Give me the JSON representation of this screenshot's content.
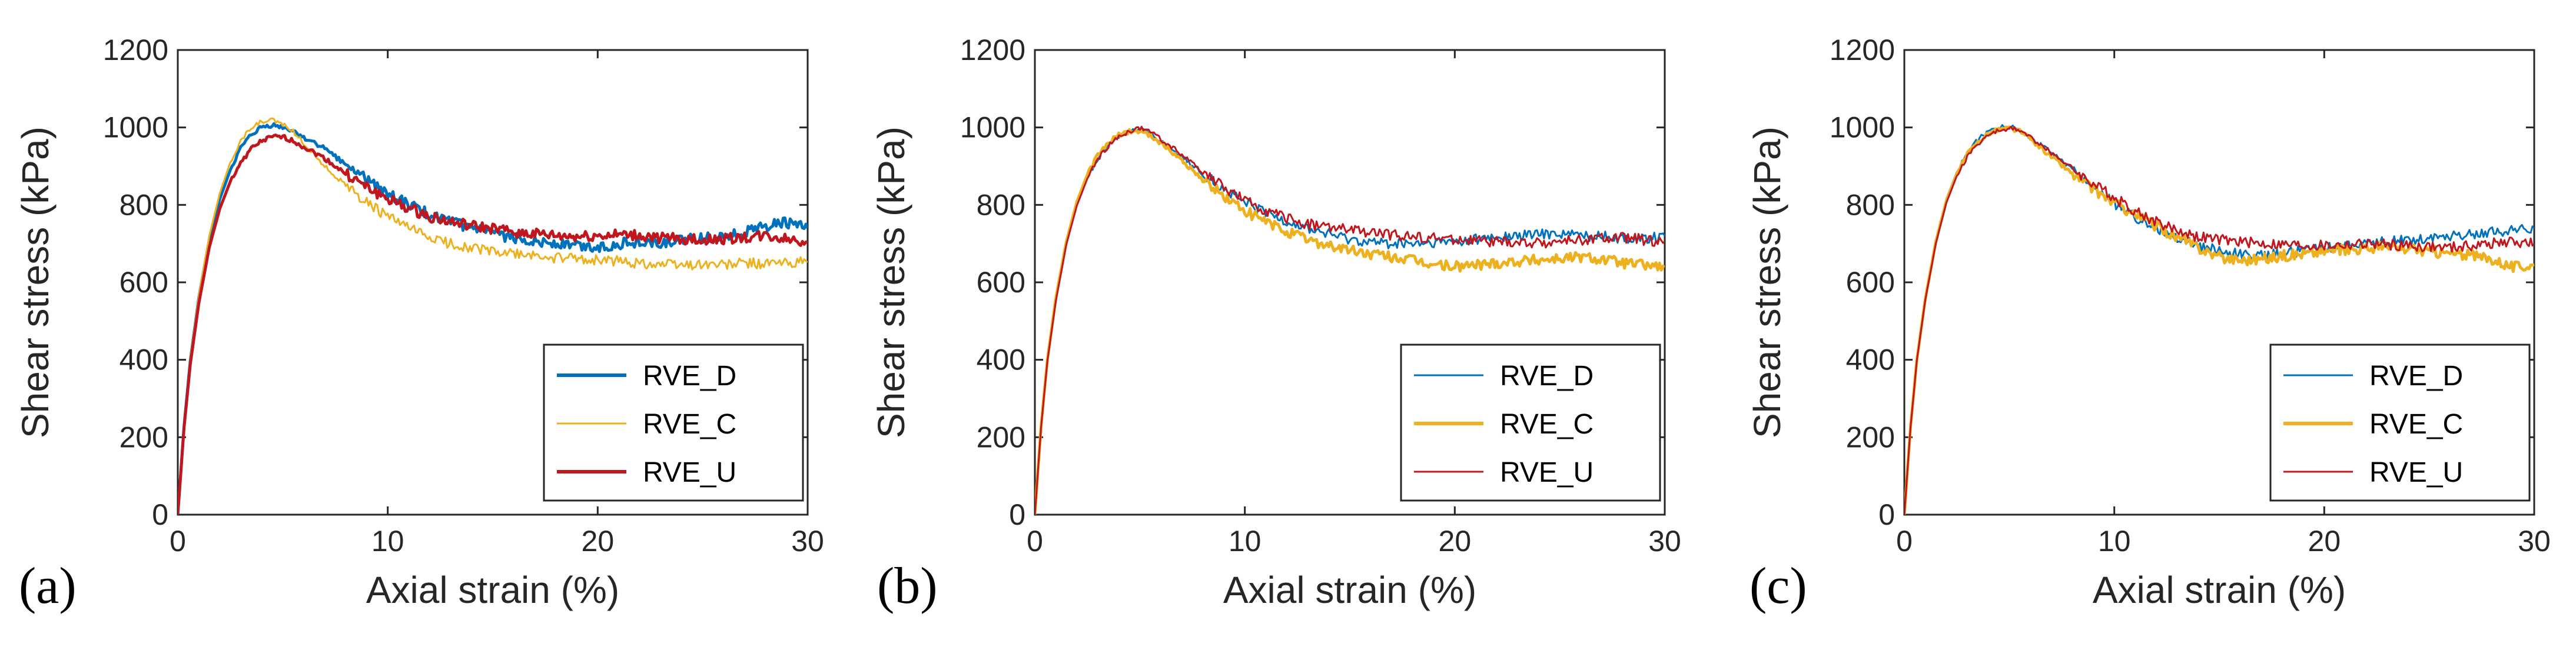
{
  "figure": {
    "panel_labels": [
      "(a)",
      "(b)",
      "(c)"
    ]
  },
  "chart_data": [
    {
      "type": "line",
      "panel": "(a)",
      "xlabel": "Axial strain (%)",
      "ylabel": "Shear stress (kPa)",
      "xlim": [
        0,
        30
      ],
      "ylim": [
        0,
        1200
      ],
      "xticks": [
        0,
        10,
        20,
        30
      ],
      "yticks": [
        0,
        200,
        400,
        600,
        800,
        1000,
        1200
      ],
      "grid": false,
      "legend_position": "bottom-right",
      "series": [
        {
          "name": "RVE_D",
          "color": "#0072BD",
          "emphasis": "thick",
          "x": [
            0,
            0.3,
            0.6,
            1,
            1.5,
            2,
            2.5,
            3,
            3.5,
            4,
            4.5,
            5,
            5.5,
            6,
            7,
            8,
            9,
            10,
            11,
            12,
            13,
            14,
            15,
            16,
            17,
            18,
            19,
            20,
            21,
            22,
            23,
            24,
            25,
            26,
            27,
            28,
            29,
            30
          ],
          "y": [
            0,
            230,
            400,
            560,
            710,
            815,
            890,
            945,
            980,
            1000,
            1005,
            1000,
            990,
            975,
            945,
            905,
            865,
            830,
            800,
            775,
            755,
            740,
            725,
            715,
            708,
            700,
            695,
            690,
            700,
            705,
            700,
            708,
            715,
            720,
            730,
            745,
            755,
            740
          ]
        },
        {
          "name": "RVE_C",
          "color": "#EDB120",
          "emphasis": "thin",
          "x": [
            0,
            0.3,
            0.6,
            1,
            1.5,
            2,
            2.5,
            3,
            3.5,
            4,
            4.5,
            5,
            5.5,
            6,
            7,
            8,
            9,
            10,
            11,
            12,
            13,
            14,
            15,
            16,
            17,
            18,
            19,
            20,
            21,
            22,
            23,
            24,
            25,
            26,
            27,
            28,
            29,
            30
          ],
          "y": [
            0,
            235,
            405,
            565,
            720,
            830,
            910,
            965,
            1000,
            1015,
            1018,
            1010,
            990,
            960,
            900,
            850,
            805,
            770,
            740,
            715,
            700,
            690,
            680,
            672,
            668,
            662,
            660,
            658,
            655,
            650,
            648,
            645,
            648,
            645,
            650,
            648,
            650,
            652
          ]
        },
        {
          "name": "RVE_U",
          "color": "#C0171F",
          "emphasis": "thick",
          "x": [
            0,
            0.3,
            0.6,
            1,
            1.5,
            2,
            2.5,
            3,
            3.5,
            4,
            4.5,
            5,
            5.5,
            6,
            7,
            8,
            9,
            10,
            11,
            12,
            13,
            14,
            15,
            16,
            17,
            18,
            19,
            20,
            21,
            22,
            23,
            24,
            25,
            26,
            27,
            28,
            29,
            30
          ],
          "y": [
            0,
            225,
            390,
            545,
            690,
            790,
            860,
            910,
            945,
            965,
            975,
            975,
            965,
            950,
            920,
            880,
            845,
            815,
            790,
            770,
            755,
            745,
            738,
            730,
            725,
            720,
            718,
            720,
            722,
            720,
            715,
            712,
            708,
            712,
            715,
            720,
            712,
            705
          ]
        }
      ]
    },
    {
      "type": "line",
      "panel": "(b)",
      "xlabel": "Axial strain (%)",
      "ylabel": "Shear stress (kPa)",
      "xlim": [
        0,
        30
      ],
      "ylim": [
        0,
        1200
      ],
      "xticks": [
        0,
        10,
        20,
        30
      ],
      "yticks": [
        0,
        200,
        400,
        600,
        800,
        1000,
        1200
      ],
      "grid": false,
      "legend_position": "bottom-right",
      "series": [
        {
          "name": "RVE_D",
          "color": "#0072BD",
          "emphasis": "thin",
          "x": [
            0,
            0.3,
            0.6,
            1,
            1.5,
            2,
            2.5,
            3,
            3.5,
            4,
            4.5,
            5,
            5.5,
            6,
            7,
            8,
            9,
            10,
            11,
            12,
            13,
            14,
            15,
            16,
            17,
            18,
            19,
            20,
            21,
            22,
            23,
            24,
            25,
            26,
            27,
            28,
            29,
            30
          ],
          "y": [
            0,
            230,
            400,
            555,
            700,
            800,
            870,
            920,
            955,
            978,
            992,
            995,
            985,
            965,
            925,
            880,
            840,
            805,
            780,
            760,
            740,
            725,
            712,
            705,
            700,
            698,
            700,
            705,
            710,
            715,
            720,
            725,
            728,
            722,
            718,
            715,
            712,
            720
          ]
        },
        {
          "name": "RVE_C",
          "color": "#EDB120",
          "emphasis": "thick",
          "x": [
            0,
            0.3,
            0.6,
            1,
            1.5,
            2,
            2.5,
            3,
            3.5,
            4,
            4.5,
            5,
            5.5,
            6,
            7,
            8,
            9,
            10,
            11,
            12,
            13,
            14,
            15,
            16,
            17,
            18,
            19,
            20,
            21,
            22,
            23,
            24,
            25,
            26,
            27,
            28,
            29,
            30
          ],
          "y": [
            0,
            232,
            402,
            560,
            705,
            808,
            878,
            928,
            960,
            980,
            990,
            990,
            980,
            960,
            915,
            865,
            820,
            785,
            755,
            730,
            710,
            695,
            682,
            672,
            665,
            655,
            645,
            640,
            645,
            650,
            655,
            658,
            662,
            665,
            660,
            650,
            645,
            640
          ]
        },
        {
          "name": "RVE_U",
          "color": "#C0171F",
          "emphasis": "thin",
          "x": [
            0,
            0.3,
            0.6,
            1,
            1.5,
            2,
            2.5,
            3,
            3.5,
            4,
            4.5,
            5,
            5.5,
            6,
            7,
            8,
            9,
            10,
            11,
            12,
            13,
            14,
            15,
            16,
            17,
            18,
            19,
            20,
            21,
            22,
            23,
            24,
            25,
            26,
            27,
            28,
            29,
            30
          ],
          "y": [
            0,
            228,
            398,
            552,
            698,
            798,
            868,
            918,
            952,
            975,
            990,
            998,
            990,
            970,
            930,
            885,
            845,
            810,
            785,
            765,
            750,
            742,
            735,
            728,
            722,
            718,
            715,
            712,
            708,
            705,
            702,
            700,
            705,
            710,
            712,
            715,
            710,
            705
          ]
        }
      ]
    },
    {
      "type": "line",
      "panel": "(c)",
      "xlabel": "Axial strain (%)",
      "ylabel": "Shear stress (kPa)",
      "xlim": [
        0,
        30
      ],
      "ylim": [
        0,
        1200
      ],
      "xticks": [
        0,
        10,
        20,
        30
      ],
      "yticks": [
        0,
        200,
        400,
        600,
        800,
        1000,
        1200
      ],
      "grid": false,
      "legend_position": "bottom-right",
      "series": [
        {
          "name": "RVE_D",
          "color": "#0072BD",
          "emphasis": "thin",
          "x": [
            0,
            0.3,
            0.6,
            1,
            1.5,
            2,
            2.5,
            3,
            3.5,
            4,
            4.5,
            5,
            5.5,
            6,
            7,
            8,
            9,
            10,
            11,
            12,
            13,
            14,
            15,
            16,
            17,
            18,
            19,
            20,
            21,
            22,
            23,
            24,
            25,
            26,
            27,
            28,
            29,
            30
          ],
          "y": [
            0,
            232,
            405,
            562,
            710,
            815,
            885,
            935,
            968,
            990,
            1000,
            1002,
            995,
            975,
            935,
            890,
            845,
            805,
            770,
            740,
            715,
            695,
            680,
            672,
            670,
            675,
            682,
            690,
            695,
            700,
            705,
            710,
            715,
            720,
            725,
            730,
            735,
            740
          ]
        },
        {
          "name": "RVE_C",
          "color": "#EDB120",
          "emphasis": "thick",
          "x": [
            0,
            0.3,
            0.6,
            1,
            1.5,
            2,
            2.5,
            3,
            3.5,
            4,
            4.5,
            5,
            5.5,
            6,
            7,
            8,
            9,
            10,
            11,
            12,
            13,
            14,
            15,
            16,
            17,
            18,
            19,
            20,
            21,
            22,
            23,
            24,
            25,
            26,
            27,
            28,
            29,
            30
          ],
          "y": [
            0,
            230,
            402,
            558,
            705,
            810,
            880,
            930,
            962,
            985,
            995,
            998,
            990,
            970,
            925,
            880,
            840,
            805,
            775,
            745,
            715,
            690,
            665,
            658,
            660,
            668,
            675,
            680,
            685,
            688,
            690,
            685,
            680,
            675,
            668,
            660,
            640,
            645
          ]
        },
        {
          "name": "RVE_U",
          "color": "#C0171F",
          "emphasis": "thin",
          "x": [
            0,
            0.3,
            0.6,
            1,
            1.5,
            2,
            2.5,
            3,
            3.5,
            4,
            4.5,
            5,
            5.5,
            6,
            7,
            8,
            9,
            10,
            11,
            12,
            13,
            14,
            15,
            16,
            17,
            18,
            19,
            20,
            21,
            22,
            23,
            24,
            25,
            26,
            27,
            28,
            29,
            30
          ],
          "y": [
            0,
            228,
            400,
            555,
            700,
            805,
            875,
            925,
            958,
            980,
            992,
            998,
            992,
            975,
            935,
            895,
            855,
            818,
            785,
            755,
            735,
            718,
            710,
            705,
            700,
            698,
            696,
            695,
            697,
            700,
            698,
            695,
            692,
            690,
            695,
            700,
            705,
            700
          ]
        }
      ]
    }
  ]
}
